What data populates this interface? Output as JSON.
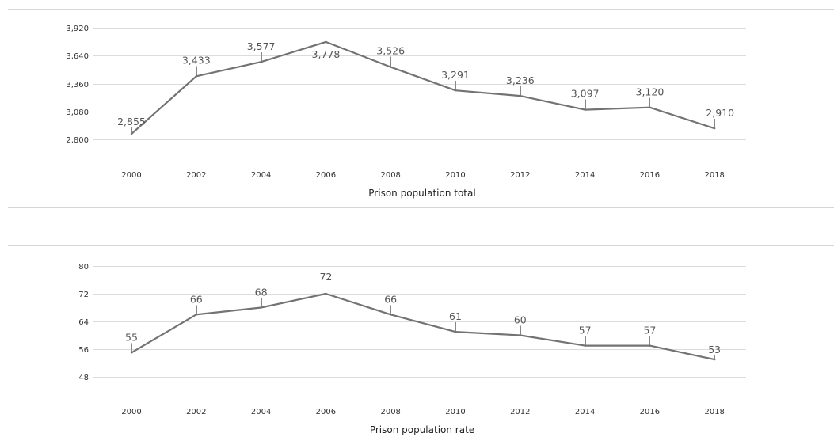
{
  "chart_data": [
    {
      "type": "line",
      "xlabel": "Prison population total",
      "ylabel": "",
      "x": [
        "2000",
        "2002",
        "2004",
        "2006",
        "2008",
        "2010",
        "2012",
        "2014",
        "2016",
        "2018"
      ],
      "values": [
        2855,
        3433,
        3577,
        3778,
        3526,
        3291,
        3236,
        3097,
        3120,
        2910
      ],
      "value_labels": [
        "2,855",
        "3,433",
        "3,577",
        "3,778",
        "3,526",
        "3,291",
        "3,236",
        "3,097",
        "3,120",
        "2,910"
      ],
      "yticks": [
        "2,800",
        "3,080",
        "3,360",
        "3,640",
        "3,920"
      ],
      "ytick_values": [
        2800,
        3080,
        3360,
        3640,
        3920
      ],
      "ylim": [
        2800,
        3920
      ],
      "grid": true,
      "line_color": "#737373"
    },
    {
      "type": "line",
      "xlabel": "Prison population rate",
      "ylabel": "",
      "x": [
        "2000",
        "2002",
        "2004",
        "2006",
        "2008",
        "2010",
        "2012",
        "2014",
        "2016",
        "2018"
      ],
      "values": [
        55,
        66,
        68,
        72,
        66,
        61,
        60,
        57,
        57,
        53
      ],
      "value_labels": [
        "55",
        "66",
        "68",
        "72",
        "66",
        "61",
        "60",
        "57",
        "57",
        "53"
      ],
      "yticks": [
        "48",
        "56",
        "64",
        "72",
        "80"
      ],
      "ytick_values": [
        48,
        56,
        64,
        72,
        80
      ],
      "ylim": [
        48,
        80
      ],
      "grid": true,
      "line_color": "#737373"
    }
  ]
}
